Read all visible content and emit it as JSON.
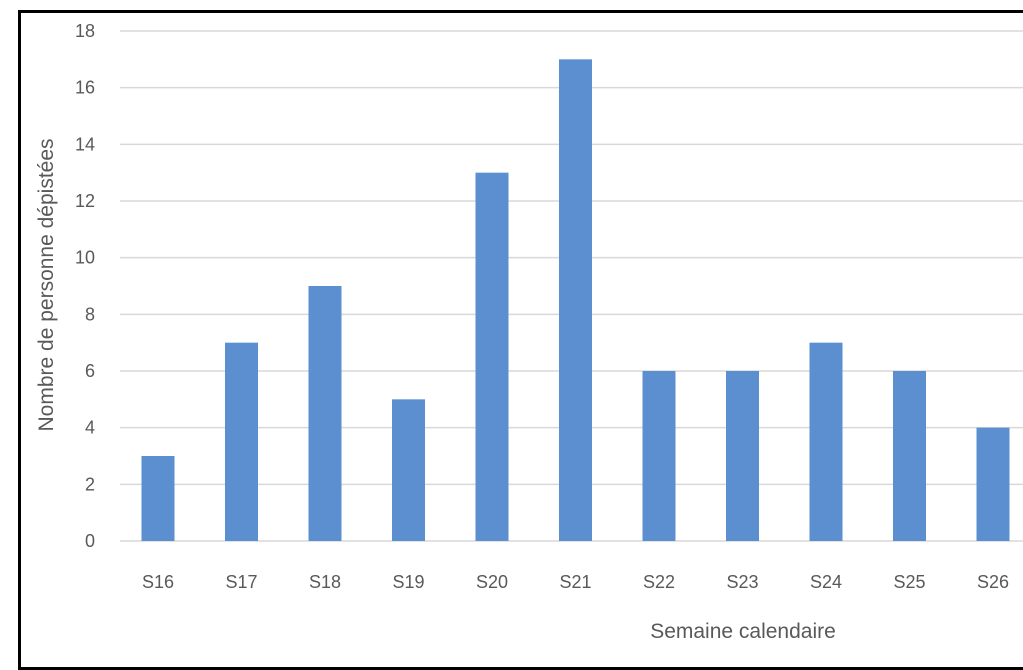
{
  "chart_data": {
    "type": "bar",
    "categories": [
      "S16",
      "S17",
      "S18",
      "S19",
      "S20",
      "S21",
      "S22",
      "S23",
      "S24",
      "S25",
      "S26"
    ],
    "values": [
      3,
      7,
      9,
      5,
      13,
      17,
      6,
      6,
      7,
      6,
      4
    ],
    "xlabel": "Semaine calendaire",
    "ylabel": "Nombre de personne dépistées",
    "ylim": [
      0,
      18
    ],
    "yticks": [
      0,
      2,
      4,
      6,
      8,
      10,
      12,
      14,
      16,
      18
    ],
    "grid": true,
    "legend": "none",
    "colors": {
      "bar": "#5b8fd0",
      "grid": "#d9d9d9",
      "text": "#595959",
      "frame": "#000000"
    }
  }
}
